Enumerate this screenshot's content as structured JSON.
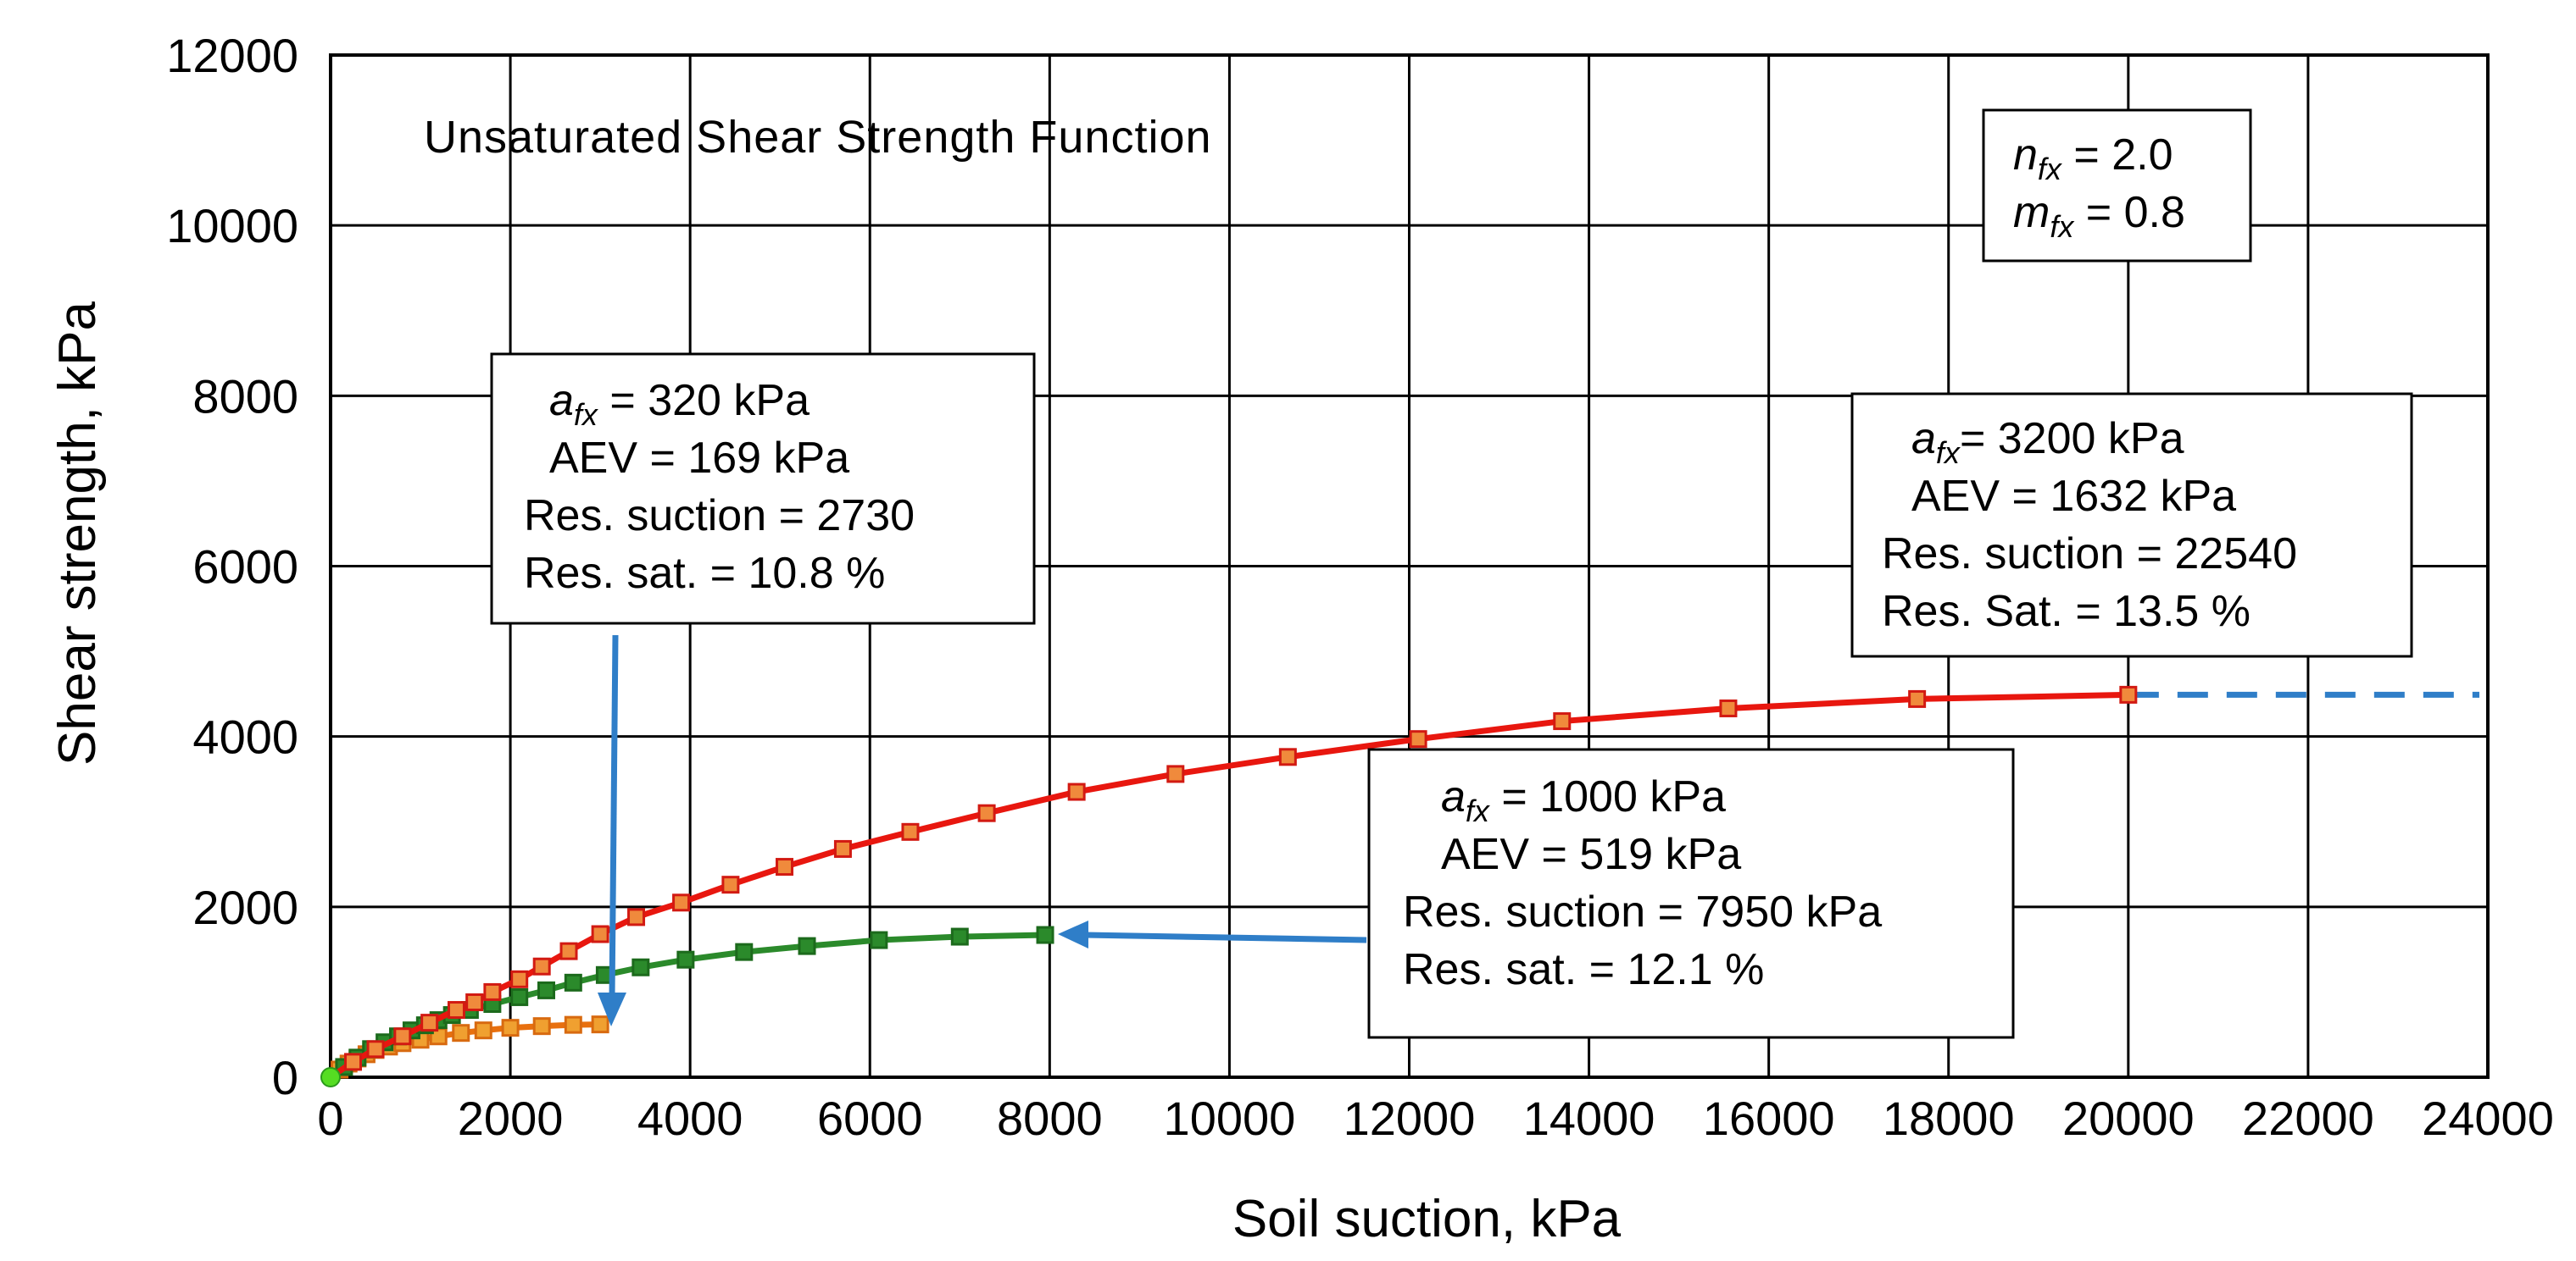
{
  "chart_data": {
    "type": "line",
    "title": "Unsaturated  Shear Strength Function",
    "xlabel": "Soil suction, kPa",
    "ylabel": "Shear strength,  kPa",
    "xlim": [
      0,
      24000
    ],
    "ylim": [
      0,
      12000
    ],
    "xticks": [
      0,
      2000,
      4000,
      6000,
      8000,
      10000,
      12000,
      14000,
      16000,
      18000,
      20000,
      22000,
      24000
    ],
    "yticks": [
      0,
      2000,
      4000,
      6000,
      8000,
      10000,
      12000
    ],
    "grid": true,
    "series": [
      {
        "name": "a_fx = 3200 kPa",
        "color": "#e8170f",
        "marker_fill": "#f08a3c",
        "marker_edge": "#d21a12",
        "x": [
          0,
          250,
          500,
          800,
          1100,
          1400,
          1600,
          1800,
          2100,
          2350,
          2650,
          3000,
          3400,
          3900,
          4450,
          5050,
          5700,
          6450,
          7300,
          8300,
          9400,
          10650,
          12100,
          13700,
          15550,
          17650,
          20000
        ],
        "y": [
          0,
          180,
          330,
          480,
          640,
          790,
          880,
          1000,
          1150,
          1300,
          1480,
          1680,
          1880,
          2050,
          2260,
          2470,
          2680,
          2880,
          3100,
          3350,
          3560,
          3760,
          3970,
          4180,
          4330,
          4440,
          4490
        ]
      },
      {
        "name": "a_fx = 1000 kPa",
        "color": "#2b8a2b",
        "marker_fill": "#2b8a2b",
        "marker_edge": "#1c6a1c",
        "x": [
          0,
          150,
          300,
          450,
          600,
          750,
          900,
          1050,
          1200,
          1350,
          1550,
          1800,
          2100,
          2400,
          2700,
          3050,
          3450,
          3950,
          4600,
          5300,
          6100,
          7000,
          7950
        ],
        "y": [
          0,
          120,
          230,
          330,
          410,
          480,
          550,
          610,
          670,
          730,
          790,
          860,
          940,
          1020,
          1110,
          1200,
          1290,
          1380,
          1470,
          1540,
          1610,
          1650,
          1670
        ]
      },
      {
        "name": "a_fx = 320 kPa",
        "color": "#e8700f",
        "marker_fill": "#f0a030",
        "marker_edge": "#d86a10",
        "x": [
          0,
          100,
          200,
          300,
          400,
          500,
          650,
          800,
          1000,
          1200,
          1450,
          1700,
          2000,
          2350,
          2700,
          3000
        ],
        "y": [
          0,
          90,
          160,
          220,
          270,
          320,
          360,
          400,
          440,
          480,
          520,
          550,
          580,
          600,
          615,
          620
        ]
      }
    ],
    "extension": {
      "color": "#2f7ec8",
      "x": [
        20000,
        24000
      ],
      "y": [
        4490,
        4490
      ],
      "style": "dashed"
    },
    "origin_marker_color": "#55dd22"
  },
  "annotations": {
    "fit_params": {
      "n_sym": "n",
      "n_sub": "fx",
      "n_value": " = 2.0",
      "m_sym": "m",
      "m_sub": "fx",
      "m_value": " = 0.8"
    },
    "box_320": {
      "a_sym": "a",
      "a_sub": "fx",
      "a_value": " = 320 kPa",
      "aev": "AEV = 169 kPa",
      "res_suction": "Res. suction = 2730",
      "res_sat": "Res. sat. = 10.8 %"
    },
    "box_3200": {
      "a_sym": "a",
      "a_sub": "fx",
      "a_value": "= 3200 kPa",
      "aev": "AEV = 1632 kPa",
      "res_suction": "Res. suction = 22540",
      "res_sat": "Res. Sat. = 13.5 %"
    },
    "box_1000": {
      "a_sym": "a",
      "a_sub": "fx",
      "a_value": " = 1000 kPa",
      "aev": "AEV = 519 kPa",
      "res_suction": "Res. suction = 7950 kPa",
      "res_sat": "Res. sat. = 12.1 %"
    },
    "arrow_color": "#2f7ec8"
  }
}
